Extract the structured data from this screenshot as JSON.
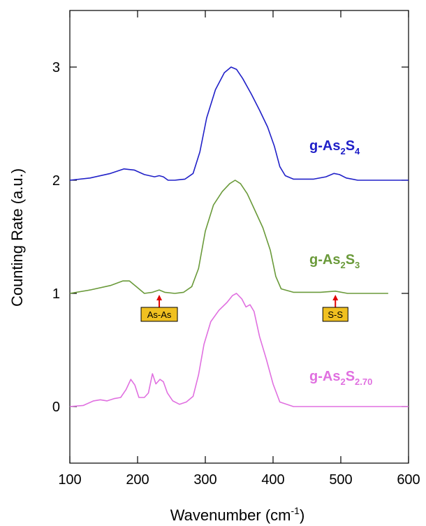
{
  "chart_data": {
    "type": "line",
    "xlabel": "Wavenumber (cm",
    "xlabel_sup": "-1",
    "xlabel_end": ")",
    "ylabel": "Counting Rate (a.u.)",
    "xlim": [
      100,
      600
    ],
    "ylim": [
      -0.5,
      3.5
    ],
    "x_ticks": [
      100,
      200,
      300,
      400,
      500,
      600
    ],
    "y_ticks": [
      0,
      1,
      2,
      3
    ],
    "grid": false,
    "series": [
      {
        "name": "g-As2S4",
        "label_parts": [
          {
            "t": "g-As",
            "s": "base"
          },
          {
            "t": "2",
            "s": "sub"
          },
          {
            "t": "S",
            "s": "base"
          },
          {
            "t": "4",
            "s": "sub"
          }
        ],
        "color": "#2020c8",
        "offset": 2,
        "points": [
          [
            100,
            2.0
          ],
          [
            130,
            2.02
          ],
          [
            160,
            2.06
          ],
          [
            180,
            2.1
          ],
          [
            195,
            2.09
          ],
          [
            210,
            2.05
          ],
          [
            225,
            2.03
          ],
          [
            232,
            2.04
          ],
          [
            238,
            2.03
          ],
          [
            245,
            2.0
          ],
          [
            255,
            2.0
          ],
          [
            270,
            2.01
          ],
          [
            282,
            2.06
          ],
          [
            292,
            2.25
          ],
          [
            302,
            2.55
          ],
          [
            315,
            2.8
          ],
          [
            328,
            2.95
          ],
          [
            338,
            3.0
          ],
          [
            346,
            2.98
          ],
          [
            355,
            2.9
          ],
          [
            368,
            2.76
          ],
          [
            380,
            2.62
          ],
          [
            392,
            2.47
          ],
          [
            402,
            2.3
          ],
          [
            410,
            2.12
          ],
          [
            418,
            2.04
          ],
          [
            430,
            2.01
          ],
          [
            460,
            2.01
          ],
          [
            478,
            2.03
          ],
          [
            490,
            2.06
          ],
          [
            498,
            2.05
          ],
          [
            508,
            2.02
          ],
          [
            525,
            2.0
          ],
          [
            600,
            2.0
          ]
        ]
      },
      {
        "name": "g-As2S3",
        "label_parts": [
          {
            "t": "g-As",
            "s": "base"
          },
          {
            "t": "2",
            "s": "sub"
          },
          {
            "t": "S",
            "s": "base"
          },
          {
            "t": "3",
            "s": "sub"
          }
        ],
        "color": "#6a9a3a",
        "offset": 1,
        "points": [
          [
            100,
            1.0
          ],
          [
            130,
            1.03
          ],
          [
            160,
            1.07
          ],
          [
            178,
            1.11
          ],
          [
            188,
            1.11
          ],
          [
            198,
            1.06
          ],
          [
            210,
            1.0
          ],
          [
            222,
            1.01
          ],
          [
            232,
            1.03
          ],
          [
            240,
            1.01
          ],
          [
            255,
            1.0
          ],
          [
            268,
            1.01
          ],
          [
            280,
            1.06
          ],
          [
            290,
            1.22
          ],
          [
            300,
            1.55
          ],
          [
            312,
            1.78
          ],
          [
            325,
            1.9
          ],
          [
            336,
            1.97
          ],
          [
            344,
            2.0
          ],
          [
            352,
            1.97
          ],
          [
            362,
            1.88
          ],
          [
            372,
            1.75
          ],
          [
            385,
            1.58
          ],
          [
            396,
            1.38
          ],
          [
            404,
            1.15
          ],
          [
            412,
            1.04
          ],
          [
            430,
            1.01
          ],
          [
            470,
            1.01
          ],
          [
            492,
            1.02
          ],
          [
            510,
            1.0
          ],
          [
            570,
            1.0
          ]
        ]
      },
      {
        "name": "g-As2S2.70",
        "label_parts": [
          {
            "t": "g-As",
            "s": "base"
          },
          {
            "t": "2",
            "s": "sub"
          },
          {
            "t": "S",
            "s": "base"
          },
          {
            "t": "2.70",
            "s": "sub"
          }
        ],
        "color": "#e070e0",
        "offset": 0,
        "points": [
          [
            100,
            0.0
          ],
          [
            120,
            0.01
          ],
          [
            135,
            0.05
          ],
          [
            145,
            0.06
          ],
          [
            155,
            0.05
          ],
          [
            165,
            0.07
          ],
          [
            175,
            0.08
          ],
          [
            183,
            0.15
          ],
          [
            190,
            0.24
          ],
          [
            196,
            0.19
          ],
          [
            202,
            0.08
          ],
          [
            210,
            0.08
          ],
          [
            216,
            0.12
          ],
          [
            222,
            0.29
          ],
          [
            227,
            0.2
          ],
          [
            233,
            0.24
          ],
          [
            238,
            0.22
          ],
          [
            244,
            0.12
          ],
          [
            252,
            0.05
          ],
          [
            262,
            0.02
          ],
          [
            272,
            0.04
          ],
          [
            282,
            0.09
          ],
          [
            290,
            0.28
          ],
          [
            298,
            0.55
          ],
          [
            308,
            0.75
          ],
          [
            320,
            0.85
          ],
          [
            332,
            0.92
          ],
          [
            340,
            0.98
          ],
          [
            346,
            1.0
          ],
          [
            354,
            0.95
          ],
          [
            360,
            0.88
          ],
          [
            366,
            0.9
          ],
          [
            372,
            0.84
          ],
          [
            380,
            0.62
          ],
          [
            390,
            0.42
          ],
          [
            400,
            0.2
          ],
          [
            410,
            0.04
          ],
          [
            430,
            0.0
          ],
          [
            600,
            0.0
          ]
        ]
      }
    ],
    "annotations": [
      {
        "label": "As-As",
        "x": 232,
        "y": 1.0
      },
      {
        "label": "S-S",
        "x": 492,
        "y": 1.0
      }
    ],
    "annotation_colors": {
      "box": "#f0c020",
      "arrow": "#e00000"
    }
  }
}
